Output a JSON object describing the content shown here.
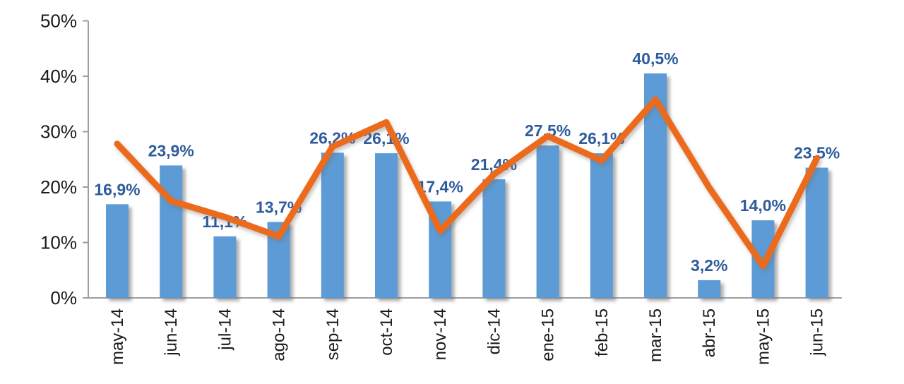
{
  "chart_data": {
    "type": "bar+line",
    "title": "",
    "xlabel": "",
    "ylabel": "",
    "categories": [
      "may-14",
      "jun-14",
      "jul-14",
      "ago-14",
      "sep-14",
      "oct-14",
      "nov-14",
      "dic-14",
      "ene-15",
      "feb-15",
      "mar-15",
      "abr-15",
      "may-15",
      "jun-15"
    ],
    "series": [
      {
        "name": "monthly-percentage-bars",
        "type": "bar",
        "values": [
          16.9,
          23.9,
          11.1,
          13.7,
          26.2,
          26.1,
          17.4,
          21.4,
          27.5,
          26.1,
          40.5,
          3.2,
          14.0,
          23.5
        ],
        "data_labels": [
          "16,9%",
          "23,9%",
          "11,1%",
          "13,7%",
          "26,2%",
          "26,1%",
          "17,4%",
          "21,4%",
          "27,5%",
          "26,1%",
          "40,5%",
          "3,2%",
          "14,0%",
          "23,5%"
        ]
      },
      {
        "name": "trend-line",
        "type": "line",
        "values": [
          27.8,
          17.5,
          14.6,
          11.1,
          27.3,
          31.7,
          12.1,
          22.3,
          29.2,
          24.8,
          35.8,
          19.9,
          5.8,
          25.2
        ]
      }
    ],
    "ylim": [
      0,
      50
    ],
    "y_ticks": [
      "0%",
      "10%",
      "20%",
      "30%",
      "40%",
      "50%"
    ],
    "grid": false,
    "legend": "none",
    "colors": {
      "bar": "#5B9BD5",
      "line": "#EC6B1E",
      "data_label": "#2E5B9C",
      "axis_line": "#9E9E9E",
      "tick_text": "#1a1a1a",
      "background": "#FFFFFF"
    }
  }
}
